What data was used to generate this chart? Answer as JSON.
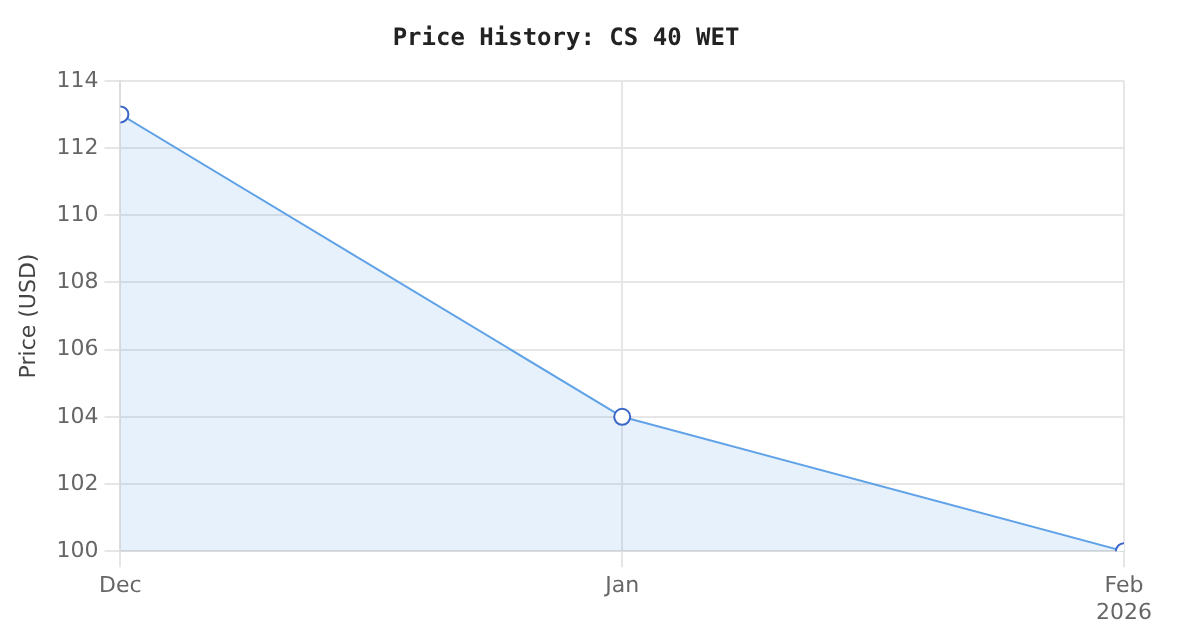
{
  "chart_data": {
    "type": "area",
    "title": "Price History: CS 40 WET",
    "ylabel": "Price (USD)",
    "x": [
      "2025-12",
      "2026-01",
      "2026-02"
    ],
    "series": [
      {
        "color": "#5fa2e8",
        "values": [
          113,
          104,
          100
        ]
      }
    ],
    "xlim": [
      "2025-12",
      "2026-02"
    ],
    "xticks": [
      {
        "value": "2025-12",
        "label": "Dec"
      },
      {
        "value": "2026-01",
        "label": "Jan"
      },
      {
        "value": "2026-02",
        "label": "Feb 2026"
      }
    ],
    "ylim": [
      100,
      114
    ],
    "yticks": [
      100,
      102,
      104,
      106,
      108,
      110,
      112,
      114
    ],
    "grid": true,
    "legend": false,
    "marker": "circle",
    "line_style": "solid"
  }
}
